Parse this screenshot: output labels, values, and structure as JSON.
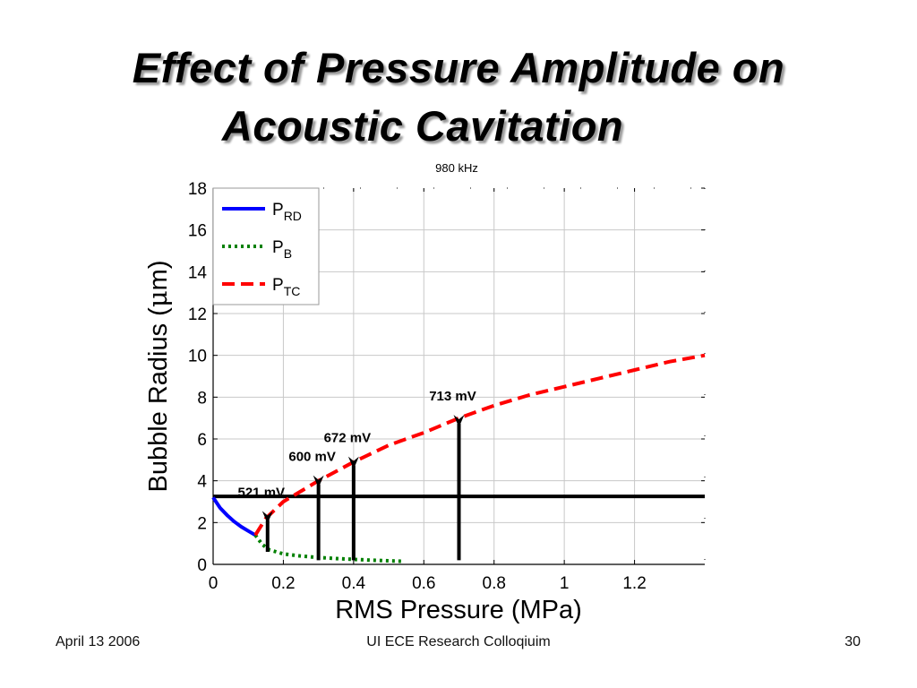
{
  "slide": {
    "title_line1": "Effect of Pressure Amplitude on",
    "title_line2": "Acoustic Cavitation",
    "footer_date": "April 13 2006",
    "footer_center": "UI ECE Research Colloqiuim",
    "page_number": "30"
  },
  "chart_data": {
    "type": "line",
    "title": "980 kHz",
    "xlabel": "RMS Pressure (MPa)",
    "ylabel_prefix": "Bubble Radius (",
    "ylabel_mu": "μ",
    "ylabel_suffix": "m)",
    "xlim": [
      0,
      1.4
    ],
    "ylim": [
      0,
      18
    ],
    "xticks": [
      0,
      0.2,
      0.4,
      0.6,
      0.8,
      1,
      1.2
    ],
    "xtick_labels": [
      "0",
      "0.2",
      "0.4",
      "0.6",
      "0.8",
      "1",
      "1.2"
    ],
    "yticks": [
      0,
      2,
      4,
      6,
      8,
      10,
      12,
      14,
      16,
      18
    ],
    "ytick_labels": [
      "0",
      "2",
      "4",
      "6",
      "8",
      "10",
      "12",
      "14",
      "16",
      "18"
    ],
    "grid": true,
    "legend_position": "top-left",
    "series": [
      {
        "name": "P_RD",
        "label_main": "P",
        "label_sub": "RD",
        "color": "#0000ff",
        "style": "solid",
        "x": [
          0,
          0.02,
          0.04,
          0.06,
          0.08,
          0.1,
          0.12
        ],
        "y": [
          3.2,
          2.7,
          2.35,
          2.05,
          1.8,
          1.6,
          1.4
        ]
      },
      {
        "name": "P_B",
        "label_main": "P",
        "label_sub": "B",
        "color": "#008000",
        "style": "dotted",
        "x": [
          0.12,
          0.14,
          0.16,
          0.2,
          0.25,
          0.3,
          0.35,
          0.4,
          0.45,
          0.5,
          0.54
        ],
        "y": [
          1.4,
          0.95,
          0.7,
          0.5,
          0.4,
          0.33,
          0.28,
          0.24,
          0.2,
          0.17,
          0.15
        ]
      },
      {
        "name": "P_TC",
        "label_main": "P",
        "label_sub": "TC",
        "color": "#ff0000",
        "style": "dashed",
        "x": [
          0.12,
          0.15,
          0.2,
          0.3,
          0.4,
          0.5,
          0.6,
          0.7,
          0.8,
          0.9,
          1.0,
          1.1,
          1.2,
          1.3,
          1.4
        ],
        "y": [
          1.4,
          2.2,
          3.0,
          4.0,
          4.9,
          5.7,
          6.3,
          7.0,
          7.6,
          8.1,
          8.5,
          8.9,
          9.3,
          9.7,
          10.0
        ]
      }
    ],
    "threshold_line": {
      "y": 3.25
    },
    "markers": [
      {
        "label": "521 mV",
        "x": 0.155,
        "y_top": 2.3
      },
      {
        "label": "600 mV",
        "x": 0.3,
        "y_top": 4.0
      },
      {
        "label": "672 mV",
        "x": 0.4,
        "y_top": 4.9
      },
      {
        "label": "713 mV",
        "x": 0.7,
        "y_top": 6.9
      }
    ]
  }
}
